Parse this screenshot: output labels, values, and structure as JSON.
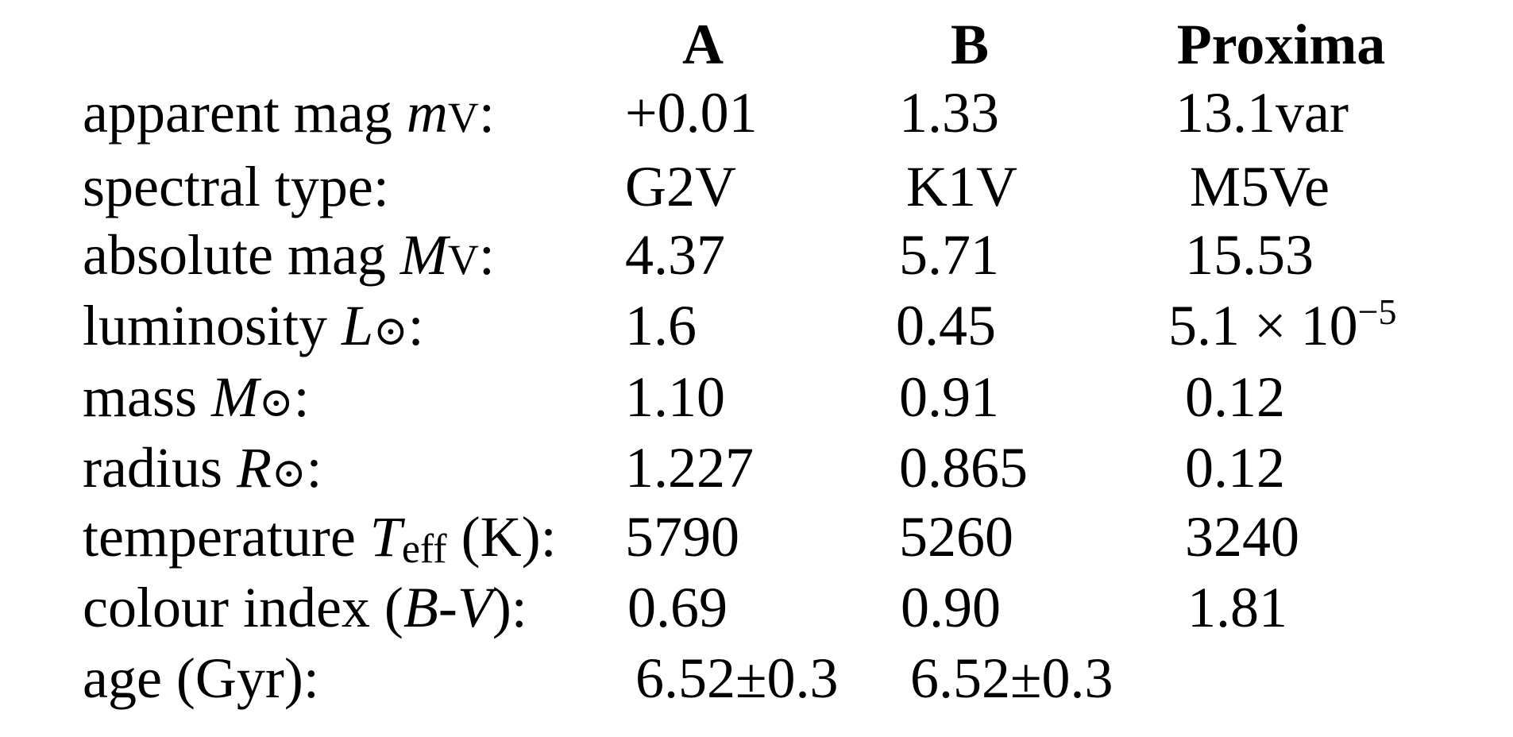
{
  "table": {
    "columns": [
      "A",
      "B",
      "Proxima"
    ],
    "rows": [
      {
        "label": [
          "apparent mag ",
          "m",
          "V",
          ":"
        ],
        "values": [
          [
            "+0.01"
          ],
          [
            "1.33"
          ],
          [
            "13.1var"
          ]
        ]
      },
      {
        "label": [
          "spectral type:"
        ],
        "values": [
          [
            "G2V"
          ],
          [
            "K1V"
          ],
          [
            "M5Ve"
          ]
        ]
      },
      {
        "label": [
          "absolute mag ",
          "M",
          "V",
          ":"
        ],
        "values": [
          [
            "4.37"
          ],
          [
            "5.71"
          ],
          [
            "15.53"
          ]
        ]
      },
      {
        "label": [
          "luminosity ",
          "L",
          "⊙",
          ":"
        ],
        "values": [
          [
            "1.6"
          ],
          [
            "0.45"
          ],
          [
            "5.1 × 10",
            "−5"
          ]
        ]
      },
      {
        "label": [
          "mass ",
          "M",
          "⊙",
          ":"
        ],
        "values": [
          [
            "1.10"
          ],
          [
            "0.91"
          ],
          [
            "0.12"
          ]
        ]
      },
      {
        "label": [
          "radius ",
          "R",
          "⊙",
          ":"
        ],
        "values": [
          [
            "1.227"
          ],
          [
            "0.865"
          ],
          [
            "0.12"
          ]
        ]
      },
      {
        "label": [
          "temperature ",
          "T",
          "eff",
          " (K):"
        ],
        "values": [
          [
            "5790"
          ],
          [
            "5260"
          ],
          [
            "3240"
          ]
        ]
      },
      {
        "label": [
          "colour index (",
          "B",
          "-",
          "V",
          "):"
        ],
        "values": [
          [
            "0.69"
          ],
          [
            "0.90"
          ],
          [
            "1.81"
          ]
        ]
      },
      {
        "label": [
          "age  (Gyr):"
        ],
        "values": [
          [
            "6.52±0.3"
          ],
          [
            "6.52±0.3"
          ]
        ]
      }
    ]
  }
}
